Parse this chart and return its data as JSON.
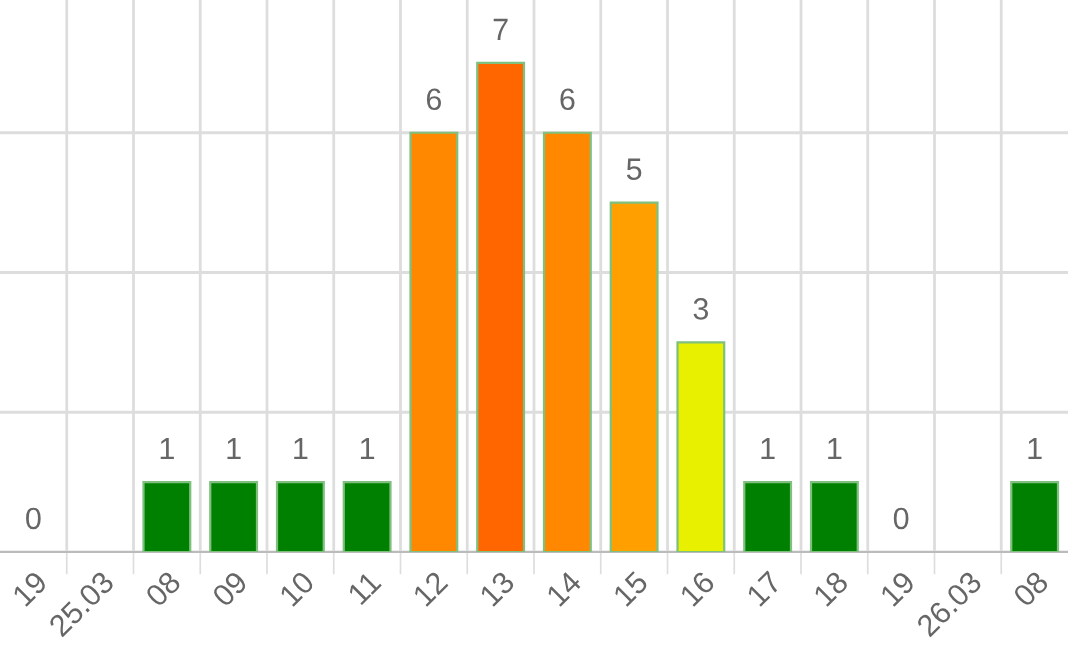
{
  "chart_data": {
    "type": "bar",
    "categories": [
      "19",
      "25.03",
      "08",
      "09",
      "10",
      "11",
      "12",
      "13",
      "14",
      "15",
      "16",
      "17",
      "18",
      "19",
      "26.03",
      "08"
    ],
    "values": [
      0,
      null,
      1,
      1,
      1,
      1,
      6,
      7,
      6,
      5,
      3,
      1,
      1,
      0,
      null,
      1
    ],
    "colors": [
      "#008000",
      "#008000",
      "#008000",
      "#008000",
      "#008000",
      "#008000",
      "#ff8800",
      "#ff6600",
      "#ff8800",
      "#ffa000",
      "#e8f000",
      "#008000",
      "#008000",
      "#008000",
      "#008000",
      "#008000"
    ],
    "data_labels": true,
    "ylim": [
      0,
      7.9
    ],
    "yticks": [
      {
        "value": 0,
        "label": null
      },
      {
        "value": 2,
        "label": null
      },
      {
        "value": 4,
        "label": null
      },
      {
        "value": 6,
        "label": null
      }
    ],
    "tick_labels": "x",
    "grid": true,
    "legend": false
  }
}
